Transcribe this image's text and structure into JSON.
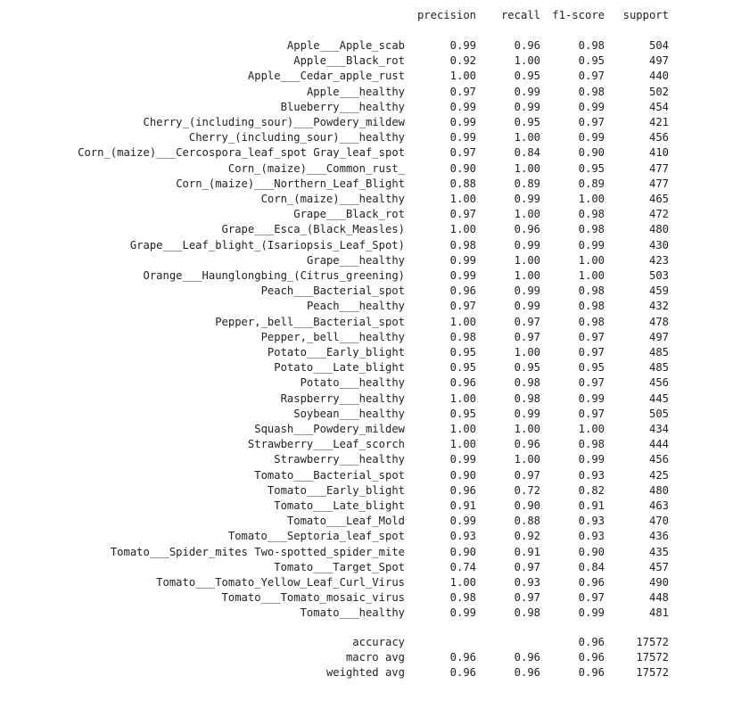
{
  "headers": {
    "precision": "precision",
    "recall": "recall",
    "f1": "f1-score",
    "support": "support"
  },
  "rows": [
    {
      "label": "Apple___Apple_scab",
      "precision": "0.99",
      "recall": "0.96",
      "f1": "0.98",
      "support": "504"
    },
    {
      "label": "Apple___Black_rot",
      "precision": "0.92",
      "recall": "1.00",
      "f1": "0.95",
      "support": "497"
    },
    {
      "label": "Apple___Cedar_apple_rust",
      "precision": "1.00",
      "recall": "0.95",
      "f1": "0.97",
      "support": "440"
    },
    {
      "label": "Apple___healthy",
      "precision": "0.97",
      "recall": "0.99",
      "f1": "0.98",
      "support": "502"
    },
    {
      "label": "Blueberry___healthy",
      "precision": "0.99",
      "recall": "0.99",
      "f1": "0.99",
      "support": "454"
    },
    {
      "label": "Cherry_(including_sour)___Powdery_mildew",
      "precision": "0.99",
      "recall": "0.95",
      "f1": "0.97",
      "support": "421"
    },
    {
      "label": "Cherry_(including_sour)___healthy",
      "precision": "0.99",
      "recall": "1.00",
      "f1": "0.99",
      "support": "456"
    },
    {
      "label": "Corn_(maize)___Cercospora_leaf_spot Gray_leaf_spot",
      "precision": "0.97",
      "recall": "0.84",
      "f1": "0.90",
      "support": "410"
    },
    {
      "label": "Corn_(maize)___Common_rust_",
      "precision": "0.90",
      "recall": "1.00",
      "f1": "0.95",
      "support": "477"
    },
    {
      "label": "Corn_(maize)___Northern_Leaf_Blight",
      "precision": "0.88",
      "recall": "0.89",
      "f1": "0.89",
      "support": "477"
    },
    {
      "label": "Corn_(maize)___healthy",
      "precision": "1.00",
      "recall": "0.99",
      "f1": "1.00",
      "support": "465"
    },
    {
      "label": "Grape___Black_rot",
      "precision": "0.97",
      "recall": "1.00",
      "f1": "0.98",
      "support": "472"
    },
    {
      "label": "Grape___Esca_(Black_Measles)",
      "precision": "1.00",
      "recall": "0.96",
      "f1": "0.98",
      "support": "480"
    },
    {
      "label": "Grape___Leaf_blight_(Isariopsis_Leaf_Spot)",
      "precision": "0.98",
      "recall": "0.99",
      "f1": "0.99",
      "support": "430"
    },
    {
      "label": "Grape___healthy",
      "precision": "0.99",
      "recall": "1.00",
      "f1": "1.00",
      "support": "423"
    },
    {
      "label": "Orange___Haunglongbing_(Citrus_greening)",
      "precision": "0.99",
      "recall": "1.00",
      "f1": "1.00",
      "support": "503"
    },
    {
      "label": "Peach___Bacterial_spot",
      "precision": "0.96",
      "recall": "0.99",
      "f1": "0.98",
      "support": "459"
    },
    {
      "label": "Peach___healthy",
      "precision": "0.97",
      "recall": "0.99",
      "f1": "0.98",
      "support": "432"
    },
    {
      "label": "Pepper,_bell___Bacterial_spot",
      "precision": "1.00",
      "recall": "0.97",
      "f1": "0.98",
      "support": "478"
    },
    {
      "label": "Pepper,_bell___healthy",
      "precision": "0.98",
      "recall": "0.97",
      "f1": "0.97",
      "support": "497"
    },
    {
      "label": "Potato___Early_blight",
      "precision": "0.95",
      "recall": "1.00",
      "f1": "0.97",
      "support": "485"
    },
    {
      "label": "Potato___Late_blight",
      "precision": "0.95",
      "recall": "0.95",
      "f1": "0.95",
      "support": "485"
    },
    {
      "label": "Potato___healthy",
      "precision": "0.96",
      "recall": "0.98",
      "f1": "0.97",
      "support": "456"
    },
    {
      "label": "Raspberry___healthy",
      "precision": "1.00",
      "recall": "0.98",
      "f1": "0.99",
      "support": "445"
    },
    {
      "label": "Soybean___healthy",
      "precision": "0.95",
      "recall": "0.99",
      "f1": "0.97",
      "support": "505"
    },
    {
      "label": "Squash___Powdery_mildew",
      "precision": "1.00",
      "recall": "1.00",
      "f1": "1.00",
      "support": "434"
    },
    {
      "label": "Strawberry___Leaf_scorch",
      "precision": "1.00",
      "recall": "0.96",
      "f1": "0.98",
      "support": "444"
    },
    {
      "label": "Strawberry___healthy",
      "precision": "0.99",
      "recall": "1.00",
      "f1": "0.99",
      "support": "456"
    },
    {
      "label": "Tomato___Bacterial_spot",
      "precision": "0.90",
      "recall": "0.97",
      "f1": "0.93",
      "support": "425"
    },
    {
      "label": "Tomato___Early_blight",
      "precision": "0.96",
      "recall": "0.72",
      "f1": "0.82",
      "support": "480"
    },
    {
      "label": "Tomato___Late_blight",
      "precision": "0.91",
      "recall": "0.90",
      "f1": "0.91",
      "support": "463"
    },
    {
      "label": "Tomato___Leaf_Mold",
      "precision": "0.99",
      "recall": "0.88",
      "f1": "0.93",
      "support": "470"
    },
    {
      "label": "Tomato___Septoria_leaf_spot",
      "precision": "0.93",
      "recall": "0.92",
      "f1": "0.93",
      "support": "436"
    },
    {
      "label": "Tomato___Spider_mites Two-spotted_spider_mite",
      "precision": "0.90",
      "recall": "0.91",
      "f1": "0.90",
      "support": "435"
    },
    {
      "label": "Tomato___Target_Spot",
      "precision": "0.74",
      "recall": "0.97",
      "f1": "0.84",
      "support": "457"
    },
    {
      "label": "Tomato___Tomato_Yellow_Leaf_Curl_Virus",
      "precision": "1.00",
      "recall": "0.93",
      "f1": "0.96",
      "support": "490"
    },
    {
      "label": "Tomato___Tomato_mosaic_virus",
      "precision": "0.98",
      "recall": "0.97",
      "f1": "0.97",
      "support": "448"
    },
    {
      "label": "Tomato___healthy",
      "precision": "0.99",
      "recall": "0.98",
      "f1": "0.99",
      "support": "481"
    }
  ],
  "summary": [
    {
      "label": "accuracy",
      "precision": "",
      "recall": "",
      "f1": "0.96",
      "support": "17572"
    },
    {
      "label": "macro avg",
      "precision": "0.96",
      "recall": "0.96",
      "f1": "0.96",
      "support": "17572"
    },
    {
      "label": "weighted avg",
      "precision": "0.96",
      "recall": "0.96",
      "f1": "0.96",
      "support": "17572"
    }
  ]
}
